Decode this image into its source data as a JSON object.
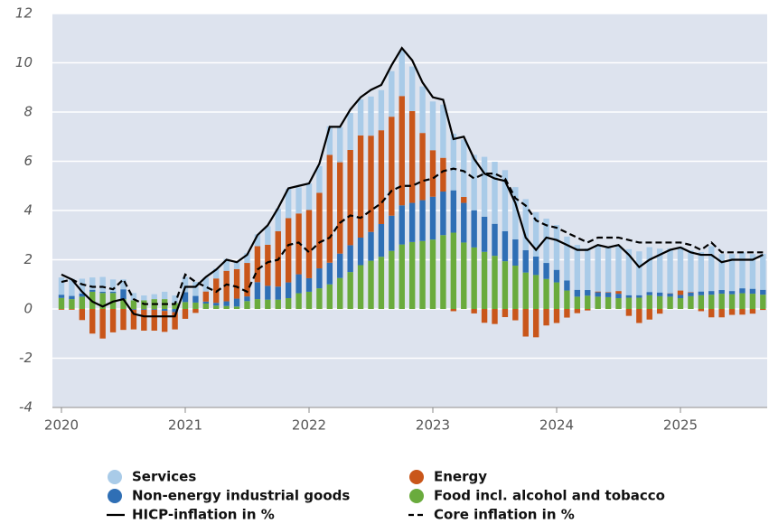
{
  "chart_data": {
    "type": "bar",
    "stacked": true,
    "categories": [
      "2020",
      null,
      null,
      null,
      null,
      null,
      null,
      null,
      null,
      null,
      null,
      null,
      "2021",
      null,
      null,
      null,
      null,
      null,
      null,
      null,
      null,
      null,
      null,
      null,
      "2022",
      null,
      null,
      null,
      null,
      null,
      null,
      null,
      null,
      null,
      null,
      null,
      "2023",
      null,
      null,
      null,
      null,
      null,
      null,
      null,
      null,
      null,
      null,
      null,
      "2024",
      null,
      null,
      null,
      null,
      null,
      null,
      null,
      null,
      null,
      null,
      null,
      "2025",
      null,
      null,
      null,
      null,
      null,
      null,
      null,
      null
    ],
    "ylim": [
      -4,
      12
    ],
    "yticks": [
      -4,
      -2,
      0,
      2,
      4,
      6,
      8,
      10,
      12
    ],
    "grid": true,
    "series": [
      {
        "name": "Food incl. alcohol and tobacco",
        "color": "#6aab3d",
        "values": [
          0.45,
          0.4,
          0.5,
          0.7,
          0.65,
          0.65,
          0.4,
          0.35,
          0.35,
          0.4,
          0.4,
          0.25,
          0.28,
          0.26,
          0.22,
          0.14,
          0.12,
          0.1,
          0.32,
          0.4,
          0.38,
          0.38,
          0.44,
          0.64,
          0.7,
          0.84,
          1.0,
          1.26,
          1.5,
          1.78,
          1.96,
          2.12,
          2.36,
          2.62,
          2.72,
          2.76,
          2.82,
          3.0,
          3.1,
          2.7,
          2.5,
          2.32,
          2.16,
          1.94,
          1.76,
          1.48,
          1.38,
          1.22,
          1.08,
          0.75,
          0.5,
          0.54,
          0.5,
          0.48,
          0.44,
          0.46,
          0.46,
          0.56,
          0.52,
          0.5,
          0.44,
          0.52,
          0.56,
          0.58,
          0.62,
          0.6,
          0.64,
          0.62,
          0.58
        ]
      },
      {
        "name": "Non-energy industrial goods",
        "color": "#2f6fb5",
        "values": [
          0.13,
          0.13,
          0.13,
          0.08,
          0.05,
          0.05,
          0.4,
          -0.03,
          -0.03,
          -0.03,
          -0.08,
          -0.13,
          0.4,
          0.27,
          0.08,
          0.11,
          0.19,
          0.32,
          0.19,
          0.69,
          0.56,
          0.53,
          0.64,
          0.77,
          0.55,
          0.81,
          0.88,
          0.99,
          1.09,
          1.12,
          1.17,
          1.33,
          1.43,
          1.59,
          1.59,
          1.66,
          1.74,
          1.77,
          1.72,
          1.61,
          1.51,
          1.43,
          1.3,
          1.22,
          1.07,
          0.91,
          0.75,
          0.65,
          0.51,
          0.41,
          0.28,
          0.23,
          0.18,
          0.18,
          0.18,
          0.1,
          0.1,
          0.13,
          0.15,
          0.13,
          0.13,
          0.15,
          0.15,
          0.15,
          0.15,
          0.13,
          0.2,
          0.2,
          0.2
        ]
      },
      {
        "name": "Energy",
        "color": "#c9561a",
        "values": [
          -0.03,
          -0.03,
          -0.45,
          -1.0,
          -1.2,
          -0.95,
          -0.85,
          -0.8,
          -0.85,
          -0.85,
          -0.85,
          -0.7,
          -0.4,
          -0.16,
          0.41,
          0.99,
          1.24,
          1.2,
          1.36,
          1.46,
          1.67,
          2.25,
          2.61,
          2.47,
          2.77,
          3.07,
          4.38,
          3.71,
          3.87,
          4.15,
          3.91,
          3.81,
          4.02,
          4.44,
          3.73,
          2.73,
          1.89,
          1.37,
          -0.09,
          0.24,
          -0.18,
          -0.56,
          -0.61,
          -0.33,
          -0.46,
          -1.12,
          -1.15,
          -0.67,
          -0.57,
          -0.35,
          -0.17,
          -0.06,
          0.03,
          0.02,
          0.11,
          -0.28,
          -0.57,
          -0.43,
          -0.19,
          0.01,
          0.18,
          0.02,
          -0.09,
          -0.34,
          -0.34,
          -0.24,
          -0.23,
          -0.19,
          -0.04
        ]
      },
      {
        "name": "Services",
        "color": "#a9cbe8",
        "values": [
          0.7,
          0.7,
          0.6,
          0.5,
          0.6,
          0.5,
          0.4,
          0.3,
          0.2,
          0.2,
          0.3,
          0.3,
          0.62,
          0.57,
          0.57,
          0.4,
          0.48,
          0.31,
          0.4,
          0.48,
          0.75,
          0.92,
          1.19,
          1.06,
          1.08,
          1.08,
          1.16,
          1.42,
          1.5,
          1.46,
          1.59,
          1.63,
          1.85,
          1.85,
          1.81,
          1.89,
          1.98,
          2.16,
          2.3,
          2.34,
          2.25,
          2.43,
          2.52,
          2.48,
          2.12,
          2.07,
          1.8,
          1.8,
          1.82,
          1.78,
          1.82,
          1.69,
          1.87,
          1.87,
          1.82,
          1.87,
          1.78,
          1.82,
          1.78,
          1.82,
          1.78,
          1.69,
          1.6,
          1.82,
          1.46,
          1.5,
          1.46,
          1.41,
          1.46
        ]
      },
      {
        "name": "HICP-inflation in %",
        "type": "line",
        "color": "#000000",
        "dash": false,
        "values": [
          1.4,
          1.2,
          0.7,
          0.3,
          0.1,
          0.3,
          0.4,
          -0.2,
          -0.3,
          -0.3,
          -0.3,
          -0.3,
          0.9,
          0.9,
          1.3,
          1.6,
          2.0,
          1.9,
          2.2,
          3.0,
          3.4,
          4.1,
          4.9,
          5.0,
          5.1,
          5.9,
          7.4,
          7.4,
          8.1,
          8.6,
          8.9,
          9.1,
          9.9,
          10.6,
          10.1,
          9.2,
          8.6,
          8.5,
          6.9,
          7.0,
          6.1,
          5.5,
          5.3,
          5.2,
          4.3,
          2.9,
          2.4,
          2.9,
          2.8,
          2.6,
          2.4,
          2.4,
          2.6,
          2.5,
          2.6,
          2.2,
          1.7,
          2.0,
          2.2,
          2.4,
          2.5,
          2.3,
          2.2,
          2.2,
          1.9,
          2.0,
          2.0,
          2.0,
          2.2
        ]
      },
      {
        "name": "Core inflation in %",
        "type": "line",
        "color": "#000000",
        "dash": true,
        "values": [
          1.1,
          1.2,
          1.0,
          0.9,
          0.9,
          0.8,
          1.2,
          0.4,
          0.2,
          0.2,
          0.2,
          0.2,
          1.4,
          1.1,
          0.9,
          0.7,
          1.0,
          0.9,
          0.7,
          1.6,
          1.9,
          2.0,
          2.6,
          2.7,
          2.3,
          2.7,
          2.9,
          3.5,
          3.8,
          3.7,
          4.0,
          4.3,
          4.8,
          5.0,
          5.0,
          5.2,
          5.3,
          5.6,
          5.7,
          5.6,
          5.3,
          5.5,
          5.5,
          5.3,
          4.5,
          4.2,
          3.6,
          3.4,
          3.3,
          3.1,
          2.9,
          2.7,
          2.9,
          2.9,
          2.9,
          2.8,
          2.7,
          2.7,
          2.7,
          2.7,
          2.7,
          2.6,
          2.4,
          2.7,
          2.3,
          2.3,
          2.3,
          2.3,
          2.3
        ]
      }
    ]
  }
}
